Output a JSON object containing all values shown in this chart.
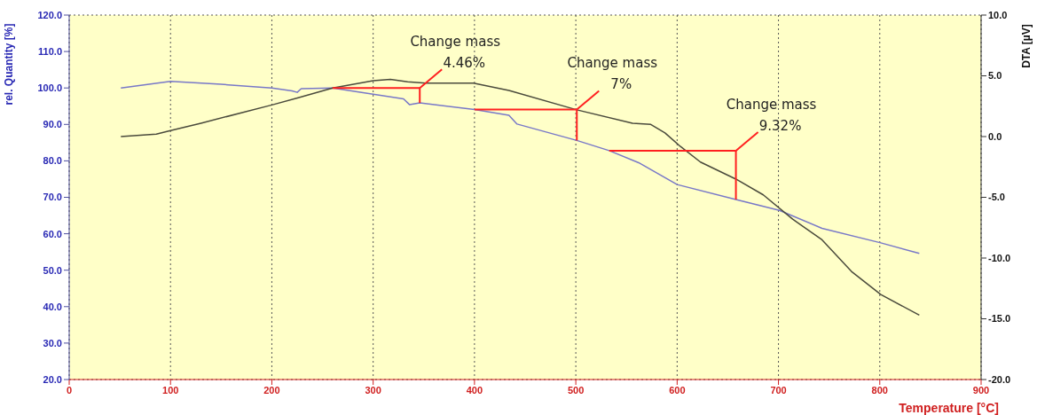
{
  "chart_data": {
    "type": "line",
    "xlabel": "Temperature  [°C]",
    "ylabel": "rel. Quantity  [%]",
    "y2label": "DTA  [µV]",
    "xlim": [
      0,
      900
    ],
    "xticks": [
      0,
      100,
      200,
      300,
      400,
      500,
      600,
      700,
      800,
      900
    ],
    "ylim": [
      20,
      120
    ],
    "yticks": [
      {
        "value": 20,
        "label": "20.0"
      },
      {
        "value": 30,
        "label": "30.0"
      },
      {
        "value": 40,
        "label": "40.0"
      },
      {
        "value": 50,
        "label": "50.0"
      },
      {
        "value": 60,
        "label": "60.0"
      },
      {
        "value": 70,
        "label": "70.0"
      },
      {
        "value": 80,
        "label": "80.0"
      },
      {
        "value": 90,
        "label": "90.0"
      },
      {
        "value": 100,
        "label": "100.0"
      },
      {
        "value": 110,
        "label": "110.0"
      },
      {
        "value": 120,
        "label": "120.0"
      }
    ],
    "y2lim": [
      -20,
      10
    ],
    "y2ticks": [
      {
        "value": -20,
        "label": "-20.0"
      },
      {
        "value": -15,
        "label": "-15.0"
      },
      {
        "value": -10,
        "label": "-10.0"
      },
      {
        "value": -5,
        "label": "-5.0"
      },
      {
        "value": 0,
        "label": "0.0"
      },
      {
        "value": 5,
        "label": "5.0"
      },
      {
        "value": 10,
        "label": "10.0"
      }
    ],
    "grid": true,
    "marker": "none",
    "line_style": "solid",
    "series": [
      {
        "color": "#7878c8",
        "x": [
          51,
          100,
          150,
          200,
          220,
          225,
          229,
          260,
          300,
          330,
          336,
          346,
          400,
          434,
          442,
          501,
          533,
          562,
          600,
          658,
          701,
          743,
          801,
          839
        ],
        "values": [
          100.0,
          101.8,
          101.0,
          100.0,
          99.2,
          98.8,
          99.8,
          100.0,
          98.3,
          97.0,
          95.4,
          95.9,
          94.1,
          92.5,
          90.1,
          85.6,
          82.8,
          79.5,
          73.5,
          69.4,
          66.4,
          61.5,
          57.5,
          54.6
        ]
      },
      {
        "color": "#4a4a3c",
        "axis": "y2",
        "x": [
          51,
          86,
          100,
          130,
          200,
          226,
          260,
          300,
          317,
          334,
          352,
          399,
          434,
          501,
          556,
          574,
          588,
          603,
          623,
          658,
          685,
          714,
          743,
          772,
          801,
          839
        ],
        "values": [
          0.0,
          0.2,
          0.5,
          1.1,
          2.6,
          3.2,
          4.0,
          4.6,
          4.7,
          4.5,
          4.4,
          4.4,
          3.8,
          2.2,
          1.1,
          1.0,
          0.3,
          -0.8,
          -2.1,
          -3.5,
          -4.8,
          -6.8,
          -8.5,
          -11.1,
          -13.0,
          -14.7
        ]
      }
    ],
    "annotations": [
      {
        "text": "Change mass\n4.46%",
        "x": 346,
        "y": 95.9
      },
      {
        "text": "Change mass\n7%",
        "x": 501,
        "y": 85.6
      },
      {
        "text": "Change mass\n9.32%",
        "x": 658,
        "y": 69.4
      }
    ]
  }
}
